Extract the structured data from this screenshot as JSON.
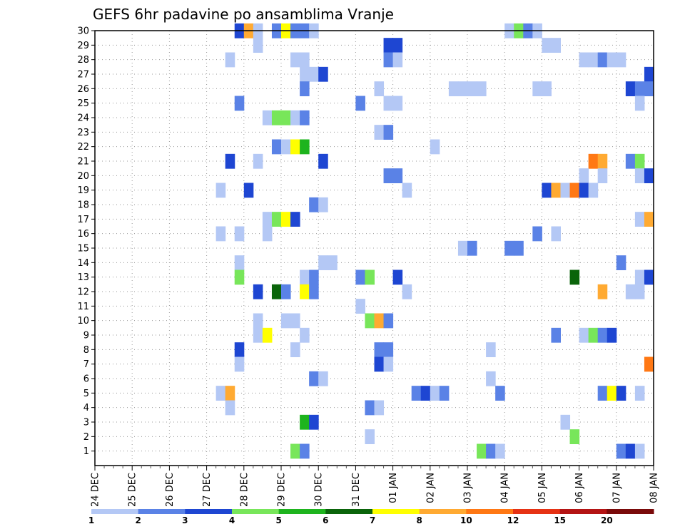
{
  "chart_data": {
    "type": "heatmap",
    "title": "GEFS 6hr padavine po ansamblima Vranje",
    "xlabel": "",
    "ylabel": "",
    "x_ticks": [
      "24 DEC",
      "25 DEC",
      "26 DEC",
      "27 DEC",
      "28 DEC",
      "29 DEC",
      "30 DEC",
      "31 DEC",
      "01 JAN",
      "02 JAN",
      "03 JAN",
      "04 JAN",
      "05 JAN",
      "06 JAN",
      "07 JAN",
      "08 JAN"
    ],
    "y_ticks": [
      "1",
      "2",
      "3",
      "4",
      "5",
      "6",
      "7",
      "8",
      "9",
      "10",
      "11",
      "12",
      "13",
      "14",
      "15",
      "16",
      "17",
      "18",
      "19",
      "20",
      "21",
      "22",
      "23",
      "24",
      "25",
      "26",
      "27",
      "28",
      "29",
      "30"
    ],
    "x_unit": "6h steps from 24 DEC 00Z",
    "xlim": [
      0,
      60
    ],
    "ylim": [
      0,
      30
    ],
    "grid": true,
    "colorbar": {
      "levels": [
        "1",
        "2",
        "3",
        "4",
        "5",
        "6",
        "7",
        "8",
        "10",
        "12",
        "15",
        "20"
      ],
      "colors": [
        "#b4c8f5",
        "#5a82e6",
        "#1e46d2",
        "#78e65a",
        "#1eb41e",
        "#0a640a",
        "#ffff00",
        "#ffaa32",
        "#ff7814",
        "#e63214",
        "#b41414",
        "#7a0a0a"
      ]
    },
    "cells": [
      [
        15.5,
        30,
        3
      ],
      [
        16.5,
        30,
        8
      ],
      [
        17.5,
        30,
        1
      ],
      [
        19.5,
        30,
        2
      ],
      [
        20.5,
        30,
        7
      ],
      [
        21.5,
        30,
        2
      ],
      [
        22.5,
        30,
        2
      ],
      [
        23.5,
        30,
        1
      ],
      [
        44.5,
        30,
        1
      ],
      [
        45.5,
        30,
        4
      ],
      [
        46.5,
        30,
        2
      ],
      [
        47.5,
        30,
        1
      ],
      [
        17.5,
        29,
        1
      ],
      [
        31.5,
        29,
        3
      ],
      [
        32.5,
        29,
        3
      ],
      [
        48.5,
        29,
        1
      ],
      [
        49.5,
        29,
        1
      ],
      [
        14.5,
        28,
        1
      ],
      [
        21.5,
        28,
        1
      ],
      [
        22.5,
        28,
        1
      ],
      [
        31.5,
        28,
        2
      ],
      [
        32.5,
        28,
        1
      ],
      [
        52.5,
        28,
        1
      ],
      [
        53.5,
        28,
        1
      ],
      [
        54.5,
        28,
        2
      ],
      [
        55.5,
        28,
        1
      ],
      [
        56.5,
        28,
        1
      ],
      [
        22.5,
        27,
        1
      ],
      [
        23.5,
        27,
        1
      ],
      [
        24.5,
        27,
        3
      ],
      [
        59.5,
        27,
        3
      ],
      [
        22.5,
        26,
        2
      ],
      [
        30.5,
        26,
        1
      ],
      [
        38.5,
        26,
        1
      ],
      [
        39.5,
        26,
        1
      ],
      [
        40.5,
        26,
        1
      ],
      [
        41.5,
        26,
        1
      ],
      [
        47.5,
        26,
        1
      ],
      [
        48.5,
        26,
        1
      ],
      [
        57.5,
        26,
        3
      ],
      [
        58.5,
        26,
        2
      ],
      [
        59.5,
        26,
        2
      ],
      [
        15.5,
        25,
        2
      ],
      [
        28.5,
        25,
        2
      ],
      [
        31.5,
        25,
        1
      ],
      [
        32.5,
        25,
        1
      ],
      [
        58.5,
        25,
        1
      ],
      [
        18.5,
        24,
        1
      ],
      [
        19.5,
        24,
        4
      ],
      [
        20.5,
        24,
        4
      ],
      [
        21.5,
        24,
        1
      ],
      [
        22.5,
        24,
        2
      ],
      [
        30.5,
        23,
        1
      ],
      [
        31.5,
        23,
        2
      ],
      [
        19.5,
        22,
        2
      ],
      [
        20.5,
        22,
        1
      ],
      [
        21.5,
        22,
        7
      ],
      [
        22.5,
        22,
        5
      ],
      [
        36.5,
        22,
        1
      ],
      [
        14.5,
        21,
        3
      ],
      [
        17.5,
        21,
        1
      ],
      [
        24.5,
        21,
        3
      ],
      [
        53.5,
        21,
        9
      ],
      [
        54.5,
        21,
        8
      ],
      [
        57.5,
        21,
        2
      ],
      [
        58.5,
        21,
        4
      ],
      [
        31.5,
        20,
        2
      ],
      [
        32.5,
        20,
        2
      ],
      [
        52.5,
        20,
        1
      ],
      [
        54.5,
        20,
        1
      ],
      [
        58.5,
        20,
        1
      ],
      [
        59.5,
        20,
        3
      ],
      [
        13.5,
        19,
        1
      ],
      [
        16.5,
        19,
        3
      ],
      [
        33.5,
        19,
        1
      ],
      [
        48.5,
        19,
        3
      ],
      [
        49.5,
        19,
        8
      ],
      [
        50.5,
        19,
        1
      ],
      [
        51.5,
        19,
        9
      ],
      [
        52.5,
        19,
        3
      ],
      [
        53.5,
        19,
        1
      ],
      [
        23.5,
        18,
        2
      ],
      [
        24.5,
        18,
        1
      ],
      [
        18.5,
        17,
        1
      ],
      [
        19.5,
        17,
        4
      ],
      [
        20.5,
        17,
        7
      ],
      [
        21.5,
        17,
        3
      ],
      [
        58.5,
        17,
        1
      ],
      [
        59.5,
        17,
        8
      ],
      [
        13.5,
        16,
        1
      ],
      [
        15.5,
        16,
        1
      ],
      [
        18.5,
        16,
        1
      ],
      [
        47.5,
        16,
        2
      ],
      [
        49.5,
        16,
        1
      ],
      [
        39.5,
        15,
        1
      ],
      [
        40.5,
        15,
        2
      ],
      [
        44.5,
        15,
        2
      ],
      [
        45.5,
        15,
        2
      ],
      [
        15.5,
        14,
        1
      ],
      [
        24.5,
        14,
        1
      ],
      [
        25.5,
        14,
        1
      ],
      [
        56.5,
        14,
        2
      ],
      [
        15.5,
        13,
        4
      ],
      [
        22.5,
        13,
        1
      ],
      [
        23.5,
        13,
        2
      ],
      [
        28.5,
        13,
        2
      ],
      [
        29.5,
        13,
        4
      ],
      [
        32.5,
        13,
        3
      ],
      [
        51.5,
        13,
        6
      ],
      [
        58.5,
        13,
        1
      ],
      [
        59.5,
        13,
        3
      ],
      [
        17.5,
        12,
        3
      ],
      [
        19.5,
        12,
        6
      ],
      [
        20.5,
        12,
        2
      ],
      [
        22.5,
        12,
        7
      ],
      [
        23.5,
        12,
        2
      ],
      [
        33.5,
        12,
        1
      ],
      [
        54.5,
        12,
        8
      ],
      [
        57.5,
        12,
        1
      ],
      [
        58.5,
        12,
        1
      ],
      [
        28.5,
        11,
        1
      ],
      [
        29.5,
        10,
        4
      ],
      [
        30.5,
        10,
        8
      ],
      [
        31.5,
        10,
        2
      ],
      [
        17.5,
        10,
        1
      ],
      [
        20.5,
        10,
        1
      ],
      [
        21.5,
        10,
        1
      ],
      [
        17.5,
        9,
        1
      ],
      [
        18.5,
        9,
        7
      ],
      [
        22.5,
        9,
        1
      ],
      [
        49.5,
        9,
        2
      ],
      [
        52.5,
        9,
        1
      ],
      [
        53.5,
        9,
        4
      ],
      [
        54.5,
        9,
        2
      ],
      [
        55.5,
        9,
        3
      ],
      [
        15.5,
        8,
        3
      ],
      [
        21.5,
        8,
        1
      ],
      [
        30.5,
        8,
        2
      ],
      [
        31.5,
        8,
        2
      ],
      [
        42.5,
        8,
        1
      ],
      [
        15.5,
        7,
        1
      ],
      [
        30.5,
        7,
        3
      ],
      [
        31.5,
        7,
        1
      ],
      [
        59.5,
        7,
        9
      ],
      [
        23.5,
        6,
        2
      ],
      [
        24.5,
        6,
        1
      ],
      [
        42.5,
        6,
        1
      ],
      [
        13.5,
        5,
        1
      ],
      [
        14.5,
        5,
        8
      ],
      [
        34.5,
        5,
        2
      ],
      [
        35.5,
        5,
        3
      ],
      [
        36.5,
        5,
        1
      ],
      [
        37.5,
        5,
        2
      ],
      [
        43.5,
        5,
        2
      ],
      [
        54.5,
        5,
        2
      ],
      [
        55.5,
        5,
        7
      ],
      [
        56.5,
        5,
        3
      ],
      [
        58.5,
        5,
        1
      ],
      [
        14.5,
        4,
        1
      ],
      [
        29.5,
        4,
        2
      ],
      [
        30.5,
        4,
        1
      ],
      [
        22.5,
        3,
        5
      ],
      [
        23.5,
        3,
        3
      ],
      [
        50.5,
        3,
        1
      ],
      [
        29.5,
        2,
        1
      ],
      [
        51.5,
        2,
        4
      ],
      [
        21.5,
        1,
        4
      ],
      [
        22.5,
        1,
        2
      ],
      [
        41.5,
        1,
        4
      ],
      [
        42.5,
        1,
        2
      ],
      [
        43.5,
        1,
        1
      ],
      [
        56.5,
        1,
        2
      ],
      [
        57.5,
        1,
        3
      ],
      [
        58.5,
        1,
        1
      ]
    ]
  }
}
